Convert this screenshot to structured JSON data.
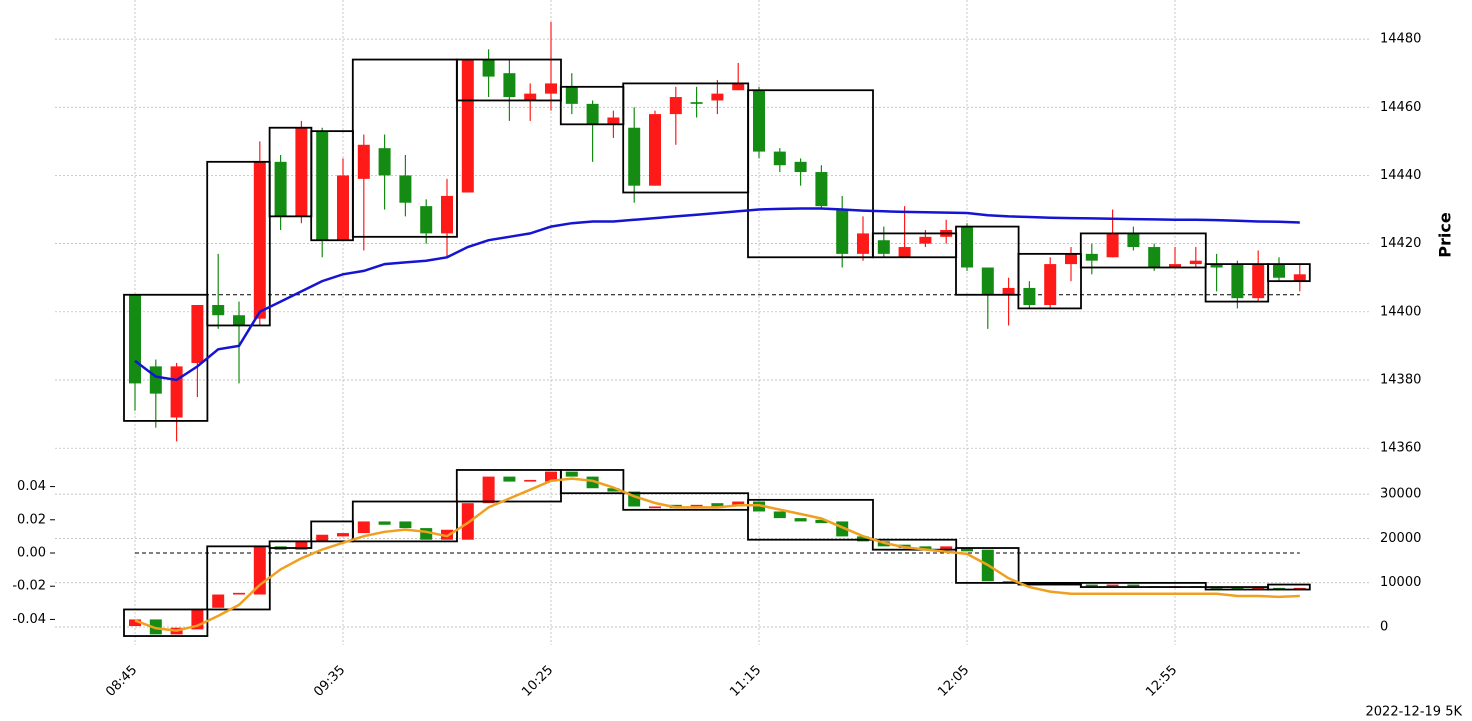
{
  "chart_data": [
    {
      "type": "candlestick",
      "ylabel": "Price",
      "open": [
        14405,
        14384,
        14369,
        14385,
        14402,
        14399,
        14398,
        14444,
        14428,
        14453,
        14421,
        14439,
        14448,
        14440,
        14431,
        14423,
        14435,
        14474,
        14470,
        14462,
        14464,
        14466,
        14461,
        14455,
        14454,
        14437,
        14458,
        14461.5,
        14462,
        14465,
        14465,
        14447,
        14444,
        14441,
        14430,
        14417,
        14421,
        14416,
        14420,
        14422,
        14425,
        14413,
        14405,
        14407,
        14402,
        14414,
        14417,
        14416,
        14423,
        14419,
        14413,
        14414,
        14414,
        14414,
        14404,
        14414,
        14409
      ],
      "high": [
        14405,
        14386,
        14385,
        14402,
        14417,
        14403,
        14450,
        14446,
        14456,
        14454,
        14445,
        14452,
        14452,
        14446,
        14433,
        14439,
        14474,
        14477,
        14474,
        14467,
        14485,
        14470,
        14462,
        14459,
        14460,
        14459,
        14466,
        14466,
        14468,
        14473,
        14466,
        14448,
        14445,
        14443,
        14434,
        14428,
        14425,
        14431,
        14424,
        14427,
        14426,
        14413,
        14410,
        14409,
        14416,
        14419,
        14420,
        14430,
        14425,
        14420,
        14419,
        14419,
        14417,
        14415,
        14418,
        14416,
        14414
      ],
      "low": [
        14371,
        14366,
        14362,
        14375,
        14395,
        14379,
        14396,
        14424,
        14426,
        14416,
        14421,
        14418,
        14430,
        14428,
        14420,
        14416,
        14435,
        14463,
        14456,
        14456,
        14459,
        14458,
        14444,
        14451,
        14432,
        14437,
        14449,
        14457,
        14458,
        14465,
        14445,
        14441,
        14437,
        14430,
        14413,
        14415,
        14416,
        14416,
        14419,
        14420,
        14412,
        14395,
        14396,
        14401,
        14401,
        14409,
        14411,
        14416,
        14418,
        14412,
        14413,
        14413,
        14406,
        14401,
        14403,
        14409,
        14406
      ],
      "close": [
        14379,
        14376,
        14384,
        14402,
        14399,
        14396,
        14444,
        14428,
        14454,
        14421,
        14440,
        14449,
        14440,
        14432,
        14423,
        14434,
        14474,
        14469,
        14463,
        14464,
        14467,
        14461,
        14455,
        14457,
        14437,
        14458,
        14463,
        14461,
        14464,
        14467,
        14447,
        14443,
        14441,
        14431,
        14417,
        14423,
        14417,
        14419,
        14422,
        14424,
        14413,
        14405,
        14407,
        14402,
        14414,
        14417,
        14415,
        14423,
        14419,
        14413,
        14414,
        14415,
        14413,
        14404,
        14414,
        14410,
        14411
      ],
      "up_color": "#ff1a1a",
      "down_color": "#148c14",
      "ylim": [
        14358,
        14490
      ],
      "yticks": [
        14360,
        14380,
        14400,
        14420,
        14440,
        14460,
        14480
      ],
      "grid": true,
      "hline": 14405,
      "lines": [
        {
          "color": "#1414d2",
          "values": [
            14385.6,
            14381,
            14380,
            14384,
            14389,
            14390,
            14400,
            14403,
            14406,
            14409,
            14411,
            14412,
            14414,
            14414.5,
            14415,
            14416,
            14419,
            14421,
            14422,
            14423,
            14425,
            14426,
            14426.5,
            14426.5,
            14427,
            14427.5,
            14428,
            14428.5,
            14429,
            14429.5,
            14430,
            14430.2,
            14430.3,
            14430.3,
            14430,
            14429.7,
            14429.5,
            14429.3,
            14429.2,
            14429.1,
            14429,
            14428.3,
            14428,
            14427.8,
            14427.6,
            14427.5,
            14427.4,
            14427.3,
            14427.2,
            14427.1,
            14427,
            14427,
            14426.9,
            14426.7,
            14426.5,
            14426.4,
            14426.2
          ]
        }
      ],
      "boxes": [
        {
          "first": 0,
          "last": 3,
          "low": 14368,
          "high": 14405
        },
        {
          "first": 4,
          "last": 6,
          "low": 14396,
          "high": 14444
        },
        {
          "first": 7,
          "last": 8,
          "low": 14428,
          "high": 14454
        },
        {
          "first": 9,
          "last": 10,
          "low": 14421,
          "high": 14453
        },
        {
          "first": 11,
          "last": 15,
          "low": 14422,
          "high": 14474
        },
        {
          "first": 16,
          "last": 20,
          "low": 14462,
          "high": 14474
        },
        {
          "first": 21,
          "last": 23,
          "low": 14455,
          "high": 14466
        },
        {
          "first": 24,
          "last": 29,
          "low": 14435,
          "high": 14467
        },
        {
          "first": 30,
          "last": 35,
          "low": 14416,
          "high": 14465
        },
        {
          "first": 36,
          "last": 39,
          "low": 14416,
          "high": 14423
        },
        {
          "first": 40,
          "last": 42,
          "low": 14405,
          "high": 14425
        },
        {
          "first": 43,
          "last": 45,
          "low": 14401,
          "high": 14417
        },
        {
          "first": 46,
          "last": 51,
          "low": 14413,
          "high": 14423
        },
        {
          "first": 52,
          "last": 54,
          "low": 14403,
          "high": 14414
        },
        {
          "first": 55,
          "last": 56,
          "low": 14409,
          "high": 14414
        }
      ]
    },
    {
      "type": "candlestick",
      "categories": [
        "08:45",
        null,
        null,
        null,
        null,
        null,
        null,
        null,
        null,
        null,
        "09:35",
        null,
        null,
        null,
        null,
        null,
        null,
        null,
        null,
        null,
        "10:25",
        null,
        null,
        null,
        null,
        null,
        null,
        null,
        null,
        null,
        "11:15",
        null,
        null,
        null,
        null,
        null,
        null,
        null,
        null,
        null,
        "12:05",
        null,
        null,
        null,
        null,
        null,
        null,
        null,
        null,
        null,
        "12:55",
        null,
        null,
        null,
        null,
        null,
        null
      ],
      "open": [
        -0.044,
        -0.04,
        -0.049,
        -0.046,
        -0.033,
        -0.025,
        -0.025,
        0.004,
        0.002,
        0.007,
        0.01,
        0.012,
        0.019,
        0.019,
        0.015,
        0.008,
        0.008,
        0.03,
        0.046,
        0.043,
        0.043,
        0.049,
        0.046,
        0.039,
        0.037,
        0.027,
        0.029,
        0.027,
        0.03,
        0.028,
        0.031,
        0.025,
        0.021,
        0.02,
        0.019,
        0.01,
        0.007,
        0.005,
        0.004,
        0.002,
        0.003,
        0.002,
        -0.017,
        -0.018,
        -0.019,
        -0.018,
        -0.019,
        -0.02,
        -0.019,
        -0.02,
        -0.0205,
        -0.02,
        -0.0205,
        -0.021,
        -0.0215,
        -0.021,
        -0.022
      ],
      "close": [
        -0.04,
        -0.049,
        -0.045,
        -0.034,
        -0.025,
        -0.024,
        0.004,
        0.002,
        0.007,
        0.011,
        0.012,
        0.019,
        0.017,
        0.015,
        0.008,
        0.014,
        0.03,
        0.046,
        0.043,
        0.044,
        0.049,
        0.046,
        0.039,
        0.037,
        0.028,
        0.028,
        0.027,
        0.029,
        0.028,
        0.031,
        0.025,
        0.021,
        0.019,
        0.018,
        0.01,
        0.007,
        0.004,
        0.003,
        0.002,
        0.004,
        0.001,
        -0.017,
        -0.018,
        -0.019,
        -0.018,
        -0.019,
        -0.02,
        -0.019,
        -0.02,
        -0.0205,
        -0.02,
        -0.0205,
        -0.021,
        -0.0215,
        -0.021,
        -0.022,
        -0.021
      ],
      "up_color": "#ff1a1a",
      "down_color": "#148c14",
      "ylim": [
        -0.0554,
        0.056
      ],
      "yticks": [
        -0.04,
        -0.02,
        {
          "value": 0,
          "label": "0.00"
        },
        0.02,
        0.04
      ],
      "y2lim": [
        -4060,
        37700
      ],
      "y2ticks": [
        0,
        10000,
        20000,
        30000
      ],
      "grid": true,
      "hline": 0,
      "lines": [
        {
          "color": "#f0a020",
          "axis": "y2",
          "values": [
            1500,
            -300,
            -800,
            300,
            2500,
            5000,
            9500,
            13000,
            15500,
            17500,
            19000,
            20500,
            21500,
            22000,
            21500,
            20500,
            23500,
            27000,
            29000,
            31000,
            33000,
            33500,
            33000,
            31500,
            29500,
            28000,
            27000,
            27000,
            27000,
            27500,
            27500,
            26500,
            25500,
            24500,
            22500,
            20500,
            19000,
            18000,
            17500,
            17000,
            16500,
            14000,
            11000,
            9000,
            8000,
            7500,
            7500,
            7500,
            7500,
            7500,
            7500,
            7500,
            7500,
            7000,
            7000,
            6800,
            7000
          ]
        }
      ],
      "boxes": [
        {
          "first": 0,
          "last": 3,
          "low": -0.05,
          "high": -0.034
        },
        {
          "first": 4,
          "last": 6,
          "low": -0.034,
          "high": 0.004
        },
        {
          "first": 7,
          "last": 8,
          "low": 0.003,
          "high": 0.007
        },
        {
          "first": 9,
          "last": 10,
          "low": 0.007,
          "high": 0.019
        },
        {
          "first": 11,
          "last": 15,
          "low": 0.007,
          "high": 0.031
        },
        {
          "first": 16,
          "last": 20,
          "low": 0.031,
          "high": 0.05
        },
        {
          "first": 21,
          "last": 23,
          "low": 0.036,
          "high": 0.05
        },
        {
          "first": 24,
          "last": 29,
          "low": 0.026,
          "high": 0.036
        },
        {
          "first": 30,
          "last": 35,
          "low": 0.008,
          "high": 0.032
        },
        {
          "first": 36,
          "last": 39,
          "low": 0.002,
          "high": 0.008
        },
        {
          "first": 40,
          "last": 42,
          "low": -0.018,
          "high": 0.003
        },
        {
          "first": 43,
          "last": 45,
          "low": -0.019,
          "high": -0.018
        },
        {
          "first": 46,
          "last": 51,
          "low": -0.0205,
          "high": -0.018
        },
        {
          "first": 52,
          "last": 54,
          "low": -0.022,
          "high": -0.0205
        },
        {
          "first": 55,
          "last": 56,
          "low": -0.022,
          "high": -0.019
        }
      ]
    }
  ],
  "caption": "2022-12-19 5K"
}
